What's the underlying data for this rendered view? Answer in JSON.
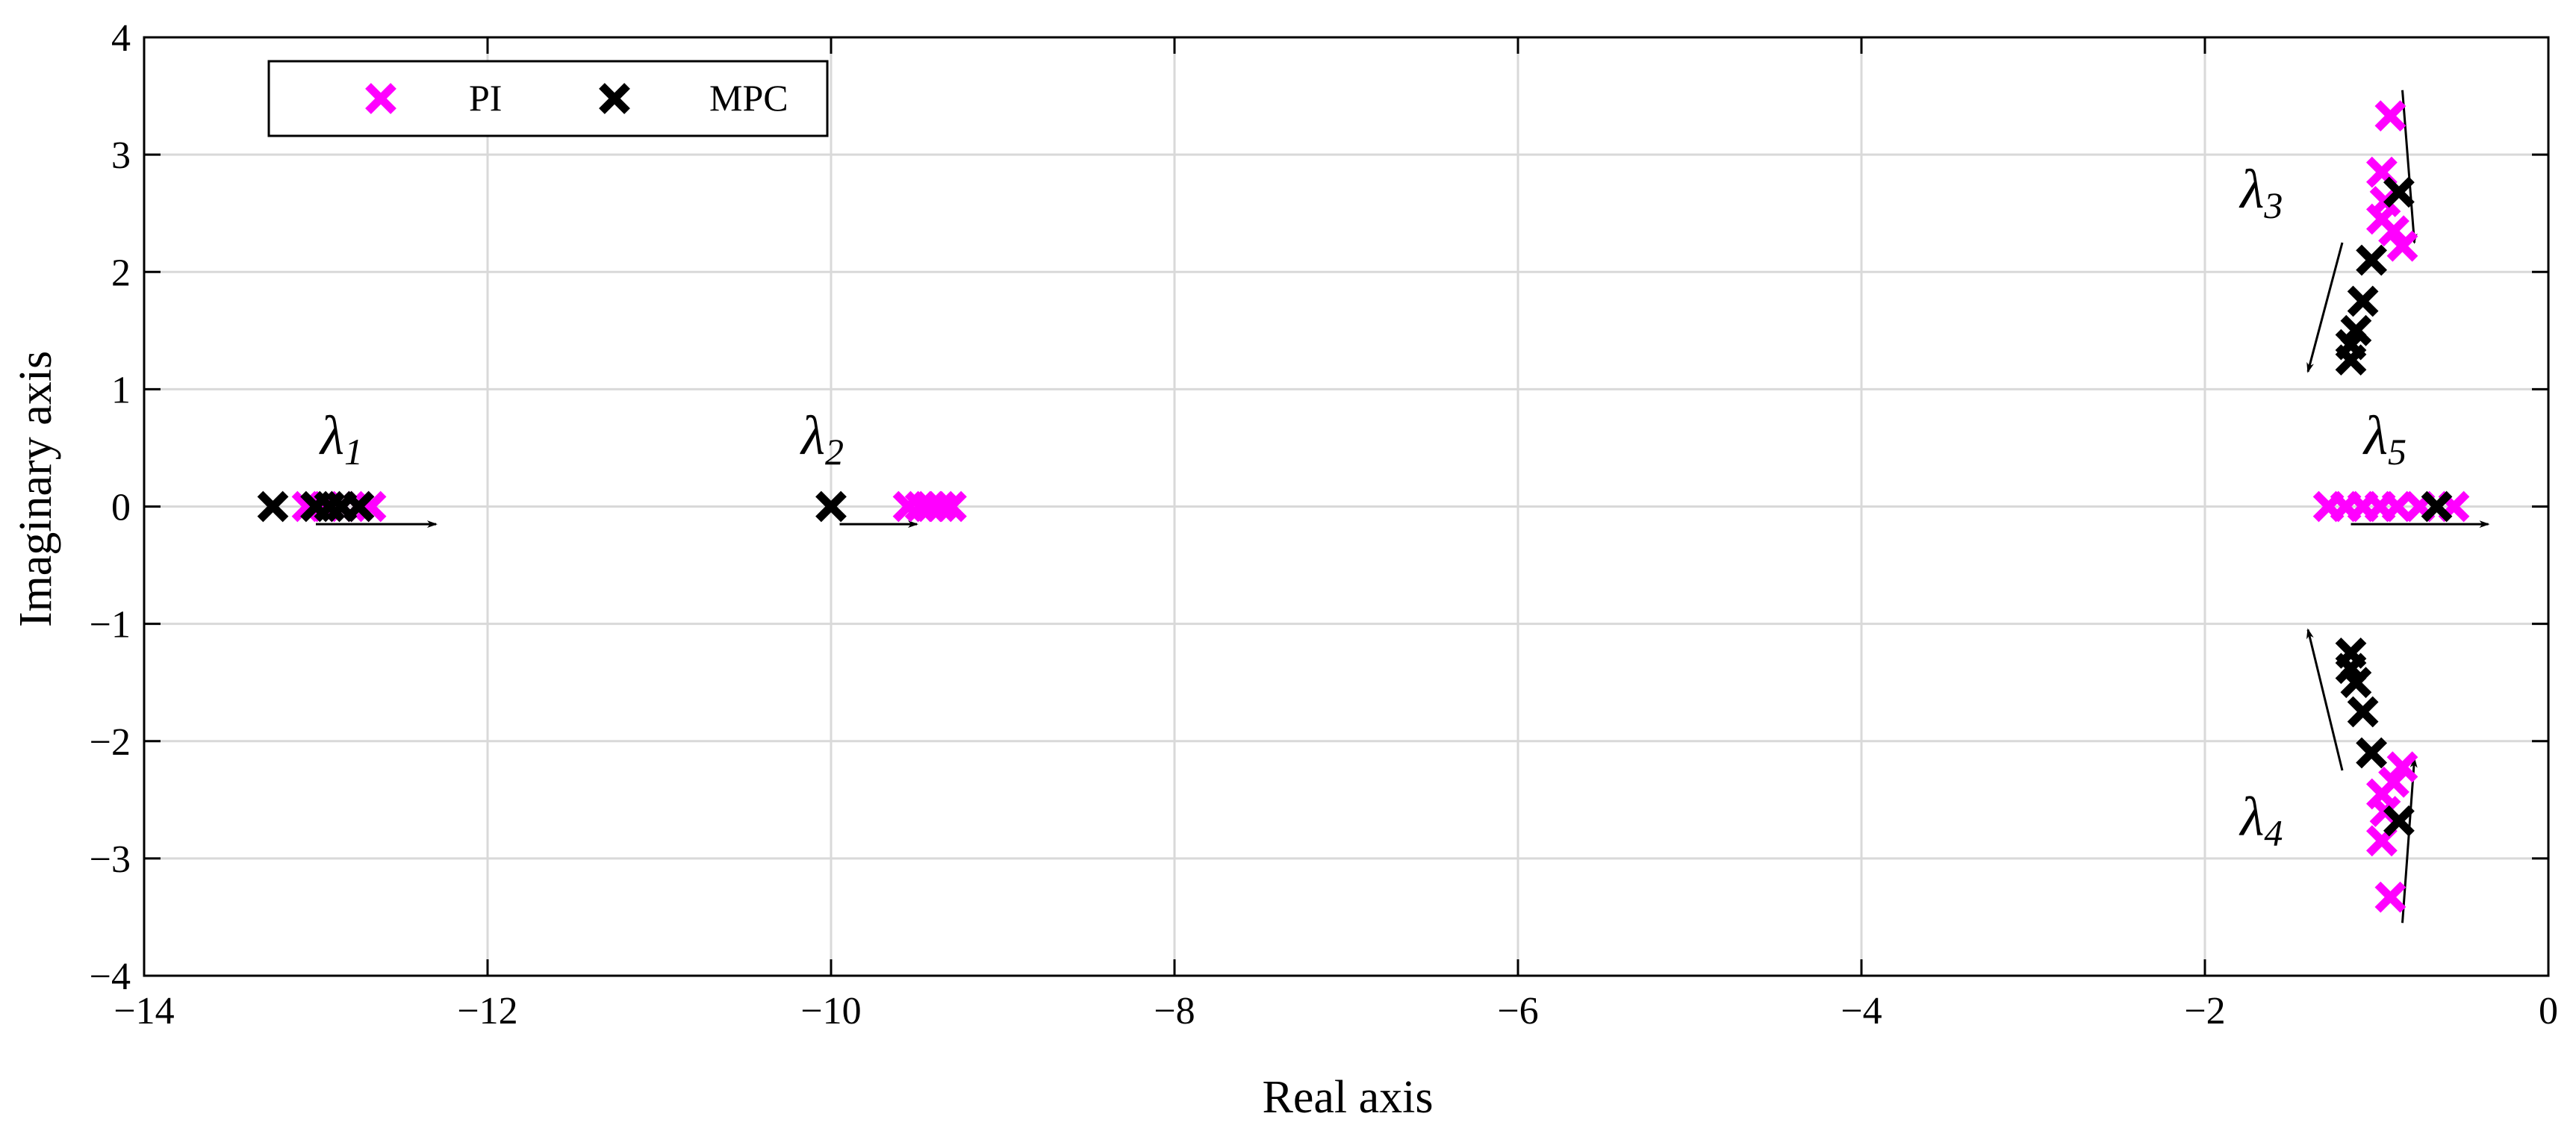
{
  "chart_data": {
    "type": "scatter",
    "title": "",
    "xlabel": "Real axis",
    "ylabel": "Imaginary axis",
    "xlim": [
      -14,
      0
    ],
    "ylim": [
      -4,
      4
    ],
    "xticks": [
      -14,
      -12,
      -10,
      -8,
      -6,
      -4,
      -2,
      0
    ],
    "yticks": [
      -4,
      -3,
      -2,
      -1,
      0,
      1,
      2,
      3,
      4
    ],
    "xtick_labels": [
      "−14",
      "−12",
      "−10",
      "−8",
      "−6",
      "−4",
      "−2",
      "0"
    ],
    "ytick_labels": [
      "−4",
      "−3",
      "−2",
      "−1",
      "0",
      "1",
      "2",
      "3",
      "4"
    ],
    "grid": true,
    "legend_position": "top-left",
    "series": [
      {
        "name": "PI",
        "color": "#ff00ff",
        "marker": "x",
        "points": [
          [
            -13.05,
            0
          ],
          [
            -12.95,
            0
          ],
          [
            -12.85,
            0
          ],
          [
            -12.75,
            0
          ],
          [
            -12.68,
            0
          ],
          [
            -9.55,
            0
          ],
          [
            -9.48,
            0
          ],
          [
            -9.42,
            0
          ],
          [
            -9.36,
            0
          ],
          [
            -9.3,
            0
          ],
          [
            -1.28,
            0
          ],
          [
            -1.18,
            0
          ],
          [
            -1.08,
            0
          ],
          [
            -0.98,
            0
          ],
          [
            -0.88,
            0
          ],
          [
            -0.75,
            0
          ],
          [
            -0.55,
            0
          ],
          [
            -0.92,
            3.33
          ],
          [
            -0.97,
            2.85
          ],
          [
            -0.95,
            2.6
          ],
          [
            -0.97,
            2.45
          ],
          [
            -0.9,
            2.35
          ],
          [
            -0.85,
            2.22
          ],
          [
            -0.92,
            -3.33
          ],
          [
            -0.97,
            -2.85
          ],
          [
            -0.95,
            -2.6
          ],
          [
            -0.97,
            -2.45
          ],
          [
            -0.9,
            -2.35
          ],
          [
            -0.85,
            -2.22
          ]
        ]
      },
      {
        "name": "MPC",
        "color": "#000000",
        "marker": "x",
        "points": [
          [
            -13.25,
            0
          ],
          [
            -13.0,
            0
          ],
          [
            -12.92,
            0
          ],
          [
            -12.85,
            0
          ],
          [
            -12.75,
            0
          ],
          [
            -10.0,
            0
          ],
          [
            -0.65,
            0
          ],
          [
            -0.87,
            2.68
          ],
          [
            -1.03,
            2.1
          ],
          [
            -1.08,
            1.75
          ],
          [
            -1.12,
            1.5
          ],
          [
            -1.15,
            1.38
          ],
          [
            -1.15,
            1.25
          ],
          [
            -0.87,
            -2.68
          ],
          [
            -1.03,
            -2.1
          ],
          [
            -1.08,
            -1.75
          ],
          [
            -1.12,
            -1.5
          ],
          [
            -1.15,
            -1.38
          ],
          [
            -1.15,
            -1.25
          ]
        ]
      }
    ],
    "annotations": [
      {
        "main": "λ",
        "sub": "1",
        "x": -12.85,
        "y": 0.45
      },
      {
        "main": "λ",
        "sub": "2",
        "x": -10.05,
        "y": 0.45
      },
      {
        "main": "λ",
        "sub": "3",
        "x": -1.67,
        "y": 2.55
      },
      {
        "main": "λ",
        "sub": "4",
        "x": -1.67,
        "y": -2.8
      },
      {
        "main": "λ",
        "sub": "5",
        "x": -0.95,
        "y": 0.45
      }
    ],
    "arrows": [
      {
        "from": [
          -13.0,
          -0.15
        ],
        "to": [
          -12.3,
          -0.15
        ]
      },
      {
        "from": [
          -9.95,
          -0.15
        ],
        "to": [
          -9.5,
          -0.15
        ]
      },
      {
        "from": [
          -1.15,
          -0.15
        ],
        "to": [
          -0.35,
          -0.15
        ]
      },
      {
        "from": [
          -0.85,
          3.55
        ],
        "to": [
          -0.78,
          2.25
        ]
      },
      {
        "from": [
          -1.2,
          2.25
        ],
        "to": [
          -1.4,
          1.15
        ]
      },
      {
        "from": [
          -0.85,
          -3.55
        ],
        "to": [
          -0.78,
          -2.15
        ]
      },
      {
        "from": [
          -1.2,
          -2.25
        ],
        "to": [
          -1.4,
          -1.05
        ]
      }
    ]
  }
}
